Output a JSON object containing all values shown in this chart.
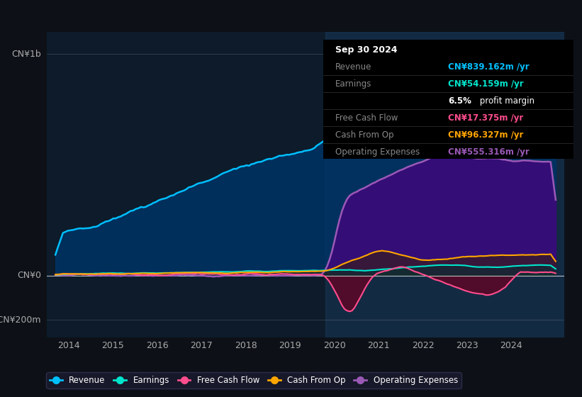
{
  "bg_color": "#0d1117",
  "plot_bg_color": "#0d1b2a",
  "ylabel_top": "CN¥1b",
  "ylabel_bottom": "-CN¥200m",
  "ylabel_zero": "CN¥0",
  "xlim_start": 2013.5,
  "xlim_end": 2025.2,
  "ylim_min": -280,
  "ylim_max": 1100,
  "xtick_years": [
    2014,
    2015,
    2016,
    2017,
    2018,
    2019,
    2020,
    2021,
    2022,
    2023,
    2024
  ],
  "colors": {
    "revenue": "#00bfff",
    "earnings": "#00e5cc",
    "free_cash_flow": "#ff4d8d",
    "cash_from_op": "#ffa500",
    "operating_expenses": "#9b59b6"
  },
  "legend": [
    {
      "label": "Revenue",
      "color": "#00bfff"
    },
    {
      "label": "Earnings",
      "color": "#00e5cc"
    },
    {
      "label": "Free Cash Flow",
      "color": "#ff4d8d"
    },
    {
      "label": "Cash From Op",
      "color": "#ffa500"
    },
    {
      "label": "Operating Expenses",
      "color": "#9b59b6"
    }
  ],
  "tooltip_rows": [
    {
      "label": "Sep 30 2024",
      "value": "",
      "color": "white",
      "is_title": true
    },
    {
      "label": "Revenue",
      "value": "CN¥839.162m /yr",
      "color": "#00bfff"
    },
    {
      "label": "Earnings",
      "value": "CN¥54.159m /yr",
      "color": "#00e5cc"
    },
    {
      "label": "",
      "value": "6.5% profit margin",
      "color": "white",
      "is_margin": true
    },
    {
      "label": "Free Cash Flow",
      "value": "CN¥17.375m /yr",
      "color": "#ff4d8d"
    },
    {
      "label": "Cash From Op",
      "value": "CN¥96.327m /yr",
      "color": "#ffa500"
    },
    {
      "label": "Operating Expenses",
      "value": "CN¥555.316m /yr",
      "color": "#9b59b6"
    }
  ]
}
